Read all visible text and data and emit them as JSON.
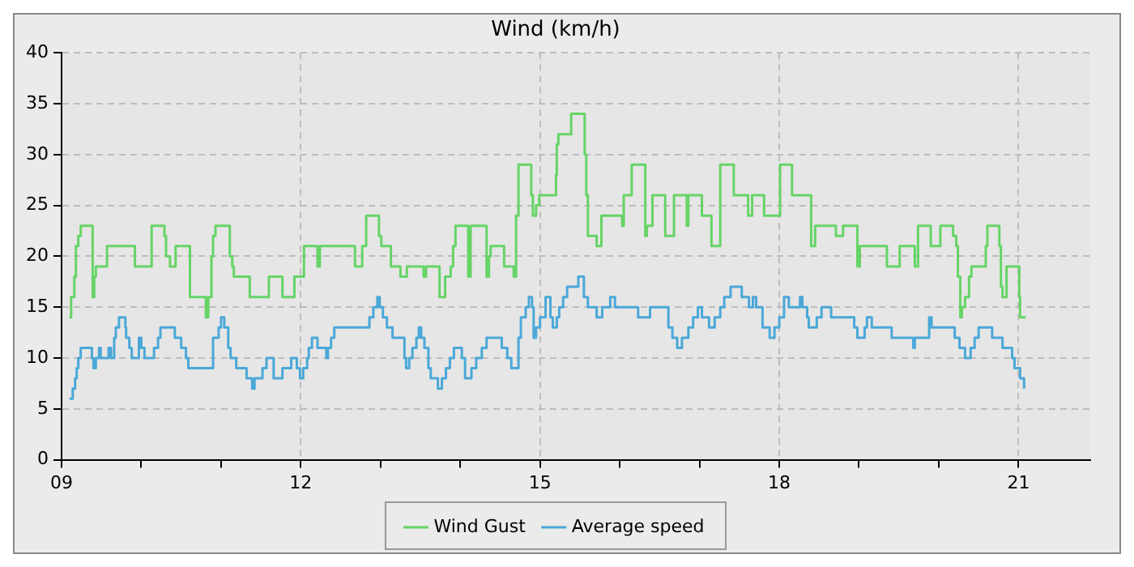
{
  "chart_data": {
    "type": "step",
    "title": "Wind (km/h)",
    "xlim": [
      9,
      21.9
    ],
    "ylim": [
      0,
      40
    ],
    "xticks": [
      {
        "value": 9,
        "label": "09"
      },
      {
        "value": 10,
        "label": null
      },
      {
        "value": 11,
        "label": null
      },
      {
        "value": 12,
        "label": "12"
      },
      {
        "value": 13,
        "label": null
      },
      {
        "value": 14,
        "label": null
      },
      {
        "value": 15,
        "label": "15"
      },
      {
        "value": 16,
        "label": null
      },
      {
        "value": 17,
        "label": null
      },
      {
        "value": 18,
        "label": "18"
      },
      {
        "value": 19,
        "label": null
      },
      {
        "value": 20,
        "label": null
      },
      {
        "value": 21,
        "label": "21"
      }
    ],
    "yticks": [
      0,
      5,
      10,
      15,
      20,
      25,
      30,
      35,
      40
    ],
    "grid": true,
    "legend": "bottom",
    "line_style": "solid",
    "marker": "none",
    "series": [
      {
        "name": "Wind Gust",
        "color": "#66d466",
        "x": [
          9.1,
          9.12,
          9.16,
          9.18,
          9.21,
          9.24,
          9.39,
          9.41,
          9.43,
          9.57,
          9.92,
          10.13,
          10.29,
          10.31,
          10.36,
          10.43,
          10.61,
          10.81,
          10.84,
          10.88,
          10.9,
          10.93,
          11.11,
          11.14,
          11.16,
          11.36,
          11.6,
          11.77,
          11.92,
          12.04,
          12.21,
          12.24,
          12.68,
          12.77,
          12.82,
          12.98,
          13.01,
          13.13,
          13.25,
          13.33,
          13.54,
          13.57,
          13.74,
          13.81,
          13.88,
          13.91,
          13.94,
          14.1,
          14.13,
          14.33,
          14.36,
          14.38,
          14.55,
          14.67,
          14.7,
          14.73,
          14.89,
          14.91,
          14.95,
          14.99,
          15.2,
          15.21,
          15.23,
          15.39,
          15.56,
          15.58,
          15.6,
          15.71,
          15.77,
          16.03,
          16.05,
          16.15,
          16.32,
          16.34,
          16.41,
          16.57,
          16.68,
          16.84,
          16.86,
          17.03,
          17.15,
          17.26,
          17.43,
          17.61,
          17.66,
          17.81,
          18.01,
          18.16,
          18.4,
          18.45,
          18.71,
          18.8,
          18.98,
          19.01,
          19.35,
          19.51,
          19.7,
          19.74,
          19.9,
          20.02,
          20.18,
          20.22,
          20.24,
          20.27,
          20.29,
          20.33,
          20.38,
          20.41,
          20.59,
          20.61,
          20.76,
          20.78,
          20.8,
          20.85,
          21.01,
          21.02,
          21.09
        ],
        "values": [
          14,
          16,
          18,
          21,
          22,
          23,
          16,
          18,
          19,
          21,
          19,
          23,
          22,
          20,
          19,
          21,
          16,
          14,
          16,
          20,
          22,
          23,
          20,
          19,
          18,
          16,
          18,
          16,
          18,
          21,
          19,
          21,
          19,
          21,
          24,
          22,
          21,
          19,
          18,
          19,
          18,
          19,
          16,
          18,
          19,
          21,
          23,
          18,
          23,
          18,
          20,
          21,
          19,
          18,
          24,
          29,
          26,
          24,
          25,
          26,
          28,
          31,
          32,
          34,
          30,
          26,
          22,
          21,
          24,
          23,
          26,
          29,
          22,
          23,
          26,
          22,
          26,
          23,
          26,
          24,
          21,
          29,
          26,
          24,
          26,
          24,
          29,
          26,
          21,
          23,
          22,
          23,
          19,
          21,
          19,
          21,
          19,
          23,
          21,
          23,
          22,
          21,
          18,
          14,
          15,
          16,
          18,
          19,
          21,
          23,
          21,
          17,
          16,
          19,
          16,
          14,
          14
        ]
      },
      {
        "name": "Average speed",
        "color": "#4aa8d8",
        "x": [
          9.1,
          9.14,
          9.17,
          9.19,
          9.21,
          9.24,
          9.38,
          9.4,
          9.43,
          9.47,
          9.49,
          9.59,
          9.62,
          9.66,
          9.68,
          9.72,
          9.8,
          9.81,
          9.85,
          9.88,
          9.97,
          10.0,
          10.04,
          10.16,
          10.21,
          10.24,
          10.42,
          10.5,
          10.56,
          10.59,
          10.9,
          10.97,
          11.0,
          11.04,
          11.09,
          11.12,
          11.19,
          11.32,
          11.39,
          11.42,
          11.52,
          11.57,
          11.66,
          11.77,
          11.88,
          11.95,
          11.99,
          12.03,
          12.08,
          12.1,
          12.14,
          12.21,
          12.32,
          12.34,
          12.38,
          12.42,
          12.86,
          12.91,
          12.96,
          12.99,
          13.03,
          13.08,
          13.15,
          13.3,
          13.32,
          13.36,
          13.4,
          13.45,
          13.48,
          13.51,
          13.55,
          13.6,
          13.63,
          13.72,
          13.77,
          13.82,
          13.87,
          13.92,
          14.02,
          14.06,
          14.14,
          14.2,
          14.27,
          14.33,
          14.52,
          14.59,
          14.64,
          14.73,
          14.76,
          14.82,
          14.86,
          14.9,
          14.92,
          14.95,
          15.0,
          15.07,
          15.13,
          15.16,
          15.21,
          15.24,
          15.29,
          15.34,
          15.48,
          15.55,
          15.6,
          15.71,
          15.78,
          15.88,
          15.94,
          16.23,
          16.38,
          16.61,
          16.66,
          16.72,
          16.78,
          16.86,
          16.92,
          16.98,
          17.03,
          17.12,
          17.19,
          17.26,
          17.31,
          17.39,
          17.53,
          17.62,
          17.67,
          17.71,
          17.79,
          17.88,
          17.94,
          18.0,
          18.06,
          18.12,
          18.26,
          18.29,
          18.35,
          18.37,
          18.47,
          18.53,
          18.65,
          18.94,
          18.98,
          19.07,
          19.1,
          19.16,
          19.41,
          19.68,
          19.7,
          19.88,
          19.91,
          20.2,
          20.26,
          20.33,
          20.4,
          20.45,
          20.5,
          20.67,
          20.8,
          20.92,
          20.95,
          21.02,
          21.07
        ],
        "values": [
          6,
          7,
          8,
          9,
          10,
          11,
          10,
          9,
          10,
          11,
          10,
          11,
          10,
          12,
          13,
          14,
          13,
          12,
          11,
          10,
          12,
          11,
          10,
          11,
          12,
          13,
          12,
          11,
          10,
          9,
          12,
          13,
          14,
          13,
          11,
          10,
          9,
          8,
          7,
          8,
          9,
          10,
          8,
          9,
          10,
          9,
          8,
          9,
          10,
          11,
          12,
          11,
          10,
          11,
          12,
          13,
          14,
          15,
          16,
          15,
          14,
          13,
          12,
          10,
          9,
          10,
          11,
          12,
          13,
          12,
          11,
          9,
          8,
          7,
          8,
          9,
          10,
          11,
          10,
          8,
          9,
          10,
          11,
          12,
          11,
          10,
          9,
          12,
          14,
          15,
          16,
          15,
          12,
          13,
          14,
          16,
          14,
          13,
          14,
          15,
          16,
          17,
          18,
          16,
          15,
          14,
          15,
          16,
          15,
          14,
          15,
          13,
          12,
          11,
          12,
          13,
          14,
          15,
          14,
          13,
          14,
          15,
          16,
          17,
          16,
          15,
          16,
          15,
          13,
          12,
          13,
          14,
          16,
          15,
          16,
          15,
          14,
          13,
          14,
          15,
          14,
          13,
          12,
          13,
          14,
          13,
          12,
          11,
          12,
          14,
          13,
          12,
          11,
          10,
          11,
          12,
          13,
          12,
          11,
          10,
          9,
          8,
          7
        ]
      }
    ]
  }
}
